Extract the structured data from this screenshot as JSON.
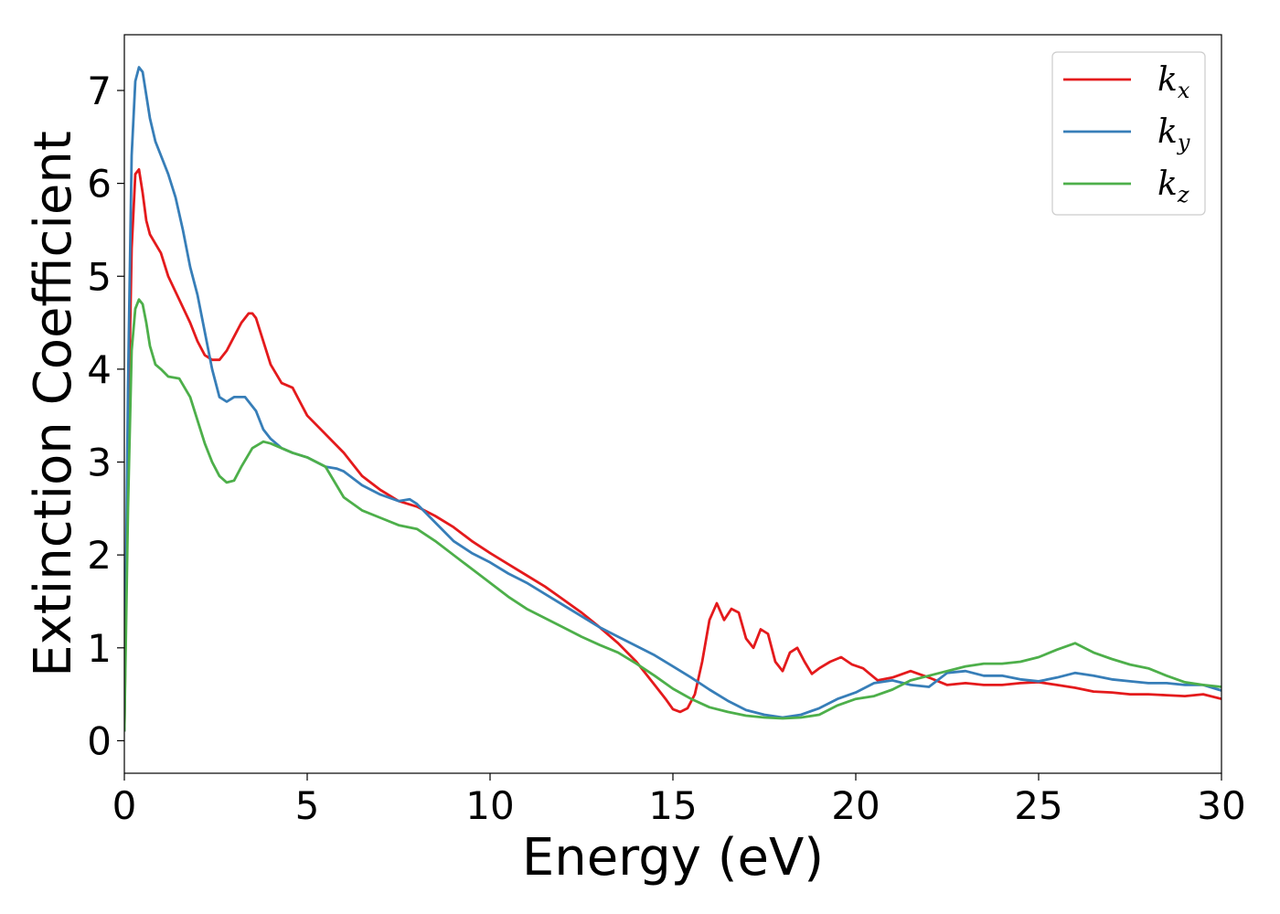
{
  "chart_data": {
    "type": "line",
    "title": "",
    "xlabel": "Energy (eV)",
    "ylabel": "Extinction Coefficient",
    "xlim": [
      0,
      30
    ],
    "ylim": [
      -0.35,
      7.6
    ],
    "xticks": [
      0,
      5,
      10,
      15,
      20,
      25,
      30
    ],
    "yticks": [
      0,
      1,
      2,
      3,
      4,
      5,
      6,
      7
    ],
    "grid": false,
    "legend_position": "top-right",
    "series": [
      {
        "name": "k",
        "sub": "x",
        "color": "#e41a1c",
        "x": [
          0,
          0.1,
          0.2,
          0.3,
          0.4,
          0.5,
          0.6,
          0.7,
          0.85,
          1.0,
          1.2,
          1.5,
          1.8,
          2.0,
          2.2,
          2.4,
          2.6,
          2.8,
          3.0,
          3.2,
          3.4,
          3.5,
          3.6,
          3.8,
          4.0,
          4.3,
          4.6,
          4.8,
          5.0,
          5.5,
          6.0,
          6.5,
          7.0,
          7.5,
          8.0,
          8.5,
          9.0,
          9.5,
          10.0,
          10.5,
          11.0,
          11.5,
          12.0,
          12.5,
          13.0,
          13.5,
          14.0,
          14.5,
          14.8,
          15.0,
          15.2,
          15.4,
          15.6,
          15.8,
          16.0,
          16.2,
          16.4,
          16.6,
          16.8,
          17.0,
          17.2,
          17.4,
          17.6,
          17.8,
          18.0,
          18.2,
          18.4,
          18.6,
          18.8,
          19.0,
          19.3,
          19.6,
          19.9,
          20.2,
          20.6,
          21.0,
          21.5,
          22.0,
          22.5,
          23.0,
          23.5,
          24.0,
          24.5,
          25.0,
          25.5,
          26.0,
          26.5,
          27.0,
          27.5,
          28.0,
          28.5,
          29.0,
          29.5,
          30.0
        ],
        "y": [
          0.1,
          3.2,
          5.3,
          6.1,
          6.15,
          5.9,
          5.6,
          5.45,
          5.35,
          5.25,
          5.0,
          4.75,
          4.5,
          4.3,
          4.15,
          4.1,
          4.1,
          4.2,
          4.35,
          4.5,
          4.6,
          4.6,
          4.55,
          4.3,
          4.05,
          3.85,
          3.8,
          3.65,
          3.5,
          3.3,
          3.1,
          2.85,
          2.7,
          2.58,
          2.52,
          2.42,
          2.3,
          2.15,
          2.02,
          1.9,
          1.78,
          1.66,
          1.52,
          1.38,
          1.22,
          1.05,
          0.85,
          0.6,
          0.45,
          0.34,
          0.31,
          0.35,
          0.5,
          0.85,
          1.3,
          1.48,
          1.3,
          1.42,
          1.38,
          1.1,
          1.0,
          1.2,
          1.15,
          0.85,
          0.75,
          0.95,
          1.0,
          0.85,
          0.72,
          0.78,
          0.85,
          0.9,
          0.82,
          0.78,
          0.65,
          0.68,
          0.75,
          0.68,
          0.6,
          0.62,
          0.6,
          0.6,
          0.62,
          0.63,
          0.6,
          0.57,
          0.53,
          0.52,
          0.5,
          0.5,
          0.49,
          0.48,
          0.5,
          0.45
        ]
      },
      {
        "name": "k",
        "sub": "y",
        "color": "#377eb8",
        "x": [
          0,
          0.1,
          0.2,
          0.3,
          0.4,
          0.5,
          0.6,
          0.7,
          0.85,
          1.0,
          1.2,
          1.4,
          1.6,
          1.8,
          2.0,
          2.2,
          2.4,
          2.6,
          2.8,
          3.0,
          3.3,
          3.6,
          3.8,
          4.0,
          4.3,
          4.6,
          5.0,
          5.5,
          5.8,
          6.0,
          6.5,
          7.0,
          7.5,
          7.8,
          8.0,
          8.5,
          9.0,
          9.5,
          10.0,
          10.5,
          11.0,
          11.5,
          12.0,
          12.5,
          13.0,
          13.5,
          14.0,
          14.5,
          15.0,
          15.5,
          16.0,
          16.5,
          17.0,
          17.5,
          18.0,
          18.5,
          19.0,
          19.5,
          20.0,
          20.5,
          21.0,
          21.5,
          22.0,
          22.5,
          23.0,
          23.5,
          24.0,
          24.5,
          25.0,
          25.5,
          26.0,
          26.5,
          27.0,
          27.5,
          28.0,
          28.5,
          29.0,
          29.5,
          30.0
        ],
        "y": [
          0.1,
          3.8,
          6.3,
          7.1,
          7.25,
          7.2,
          6.95,
          6.7,
          6.45,
          6.3,
          6.1,
          5.85,
          5.5,
          5.1,
          4.8,
          4.4,
          4.0,
          3.7,
          3.65,
          3.7,
          3.7,
          3.55,
          3.35,
          3.25,
          3.15,
          3.1,
          3.05,
          2.95,
          2.93,
          2.9,
          2.75,
          2.65,
          2.58,
          2.6,
          2.55,
          2.35,
          2.15,
          2.02,
          1.92,
          1.8,
          1.7,
          1.58,
          1.46,
          1.34,
          1.22,
          1.12,
          1.02,
          0.92,
          0.8,
          0.68,
          0.55,
          0.43,
          0.33,
          0.28,
          0.25,
          0.28,
          0.35,
          0.45,
          0.52,
          0.62,
          0.65,
          0.6,
          0.58,
          0.73,
          0.75,
          0.7,
          0.7,
          0.66,
          0.64,
          0.68,
          0.73,
          0.7,
          0.66,
          0.64,
          0.62,
          0.62,
          0.6,
          0.6,
          0.54
        ]
      },
      {
        "name": "k",
        "sub": "z",
        "color": "#4daf4a",
        "x": [
          0,
          0.1,
          0.2,
          0.3,
          0.4,
          0.5,
          0.6,
          0.7,
          0.85,
          1.0,
          1.2,
          1.5,
          1.8,
          2.0,
          2.2,
          2.4,
          2.6,
          2.8,
          3.0,
          3.2,
          3.5,
          3.8,
          4.0,
          4.3,
          4.6,
          5.0,
          5.5,
          6.0,
          6.5,
          7.0,
          7.5,
          8.0,
          8.5,
          9.0,
          9.5,
          10.0,
          10.5,
          11.0,
          11.5,
          12.0,
          12.5,
          13.0,
          13.5,
          14.0,
          14.5,
          15.0,
          15.5,
          16.0,
          16.5,
          17.0,
          17.5,
          18.0,
          18.5,
          19.0,
          19.5,
          20.0,
          20.5,
          21.0,
          21.5,
          22.0,
          22.5,
          23.0,
          23.5,
          24.0,
          24.5,
          25.0,
          25.5,
          26.0,
          26.5,
          27.0,
          27.5,
          28.0,
          28.5,
          29.0,
          29.5,
          30.0
        ],
        "y": [
          0.1,
          2.5,
          4.2,
          4.65,
          4.75,
          4.7,
          4.5,
          4.25,
          4.05,
          4.0,
          3.92,
          3.9,
          3.7,
          3.45,
          3.2,
          3.0,
          2.85,
          2.78,
          2.8,
          2.95,
          3.15,
          3.22,
          3.2,
          3.15,
          3.1,
          3.05,
          2.95,
          2.62,
          2.48,
          2.4,
          2.32,
          2.28,
          2.15,
          2.0,
          1.85,
          1.7,
          1.55,
          1.42,
          1.32,
          1.22,
          1.12,
          1.03,
          0.95,
          0.83,
          0.7,
          0.56,
          0.45,
          0.36,
          0.31,
          0.27,
          0.25,
          0.24,
          0.25,
          0.28,
          0.38,
          0.45,
          0.48,
          0.55,
          0.65,
          0.7,
          0.75,
          0.8,
          0.83,
          0.83,
          0.85,
          0.9,
          0.98,
          1.05,
          0.95,
          0.88,
          0.82,
          0.78,
          0.7,
          0.63,
          0.6,
          0.58
        ]
      }
    ]
  }
}
